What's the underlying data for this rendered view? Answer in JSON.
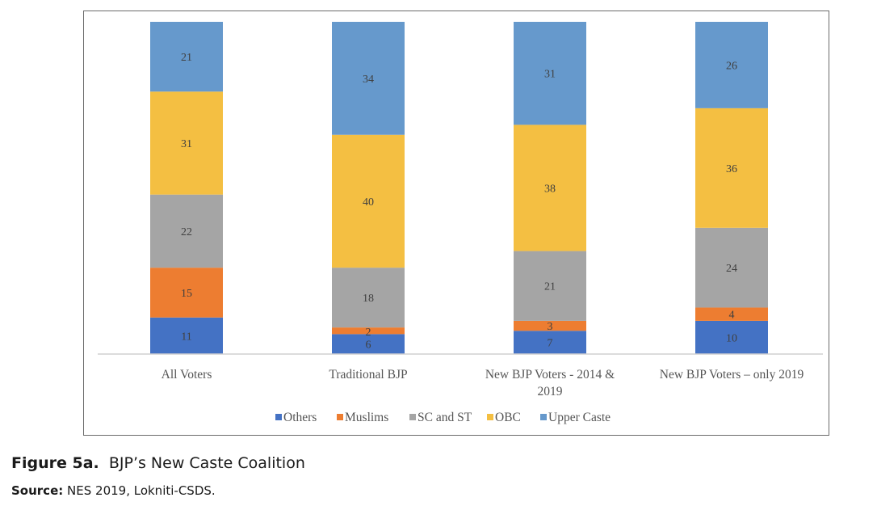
{
  "chart_data": {
    "type": "bar",
    "stacked": true,
    "title": "",
    "xlabel": "",
    "ylabel": "",
    "ylim": [
      0,
      100
    ],
    "grid": false,
    "legend_position": "bottom",
    "categories": [
      "All Voters",
      "Traditional BJP",
      "New BJP Voters - 2014 & 2019",
      "New BJP Voters – only 2019"
    ],
    "category_lines": [
      [
        "All Voters"
      ],
      [
        "Traditional BJP"
      ],
      [
        "New BJP Voters - 2014 &",
        "2019"
      ],
      [
        "New BJP Voters – only 2019"
      ]
    ],
    "series": [
      {
        "name": "Others",
        "color": "#4472c4",
        "values": [
          11,
          6,
          7,
          10
        ]
      },
      {
        "name": "Muslims",
        "color": "#ed7d31",
        "values": [
          15,
          2,
          3,
          4
        ]
      },
      {
        "name": "SC and ST",
        "color": "#a5a5a5",
        "values": [
          22,
          18,
          21,
          24
        ]
      },
      {
        "name": "OBC",
        "color": "#f4bf42",
        "values": [
          31,
          40,
          38,
          36
        ]
      },
      {
        "name": "Upper Caste",
        "color": "#6699cc",
        "values": [
          21,
          34,
          31,
          26
        ]
      }
    ]
  },
  "caption": {
    "figure_label": "Figure 5a.",
    "figure_title": "BJP’s New Caste Coalition",
    "source_label": "Source:",
    "source_text": "NES 2019, Lokniti-CSDS."
  }
}
